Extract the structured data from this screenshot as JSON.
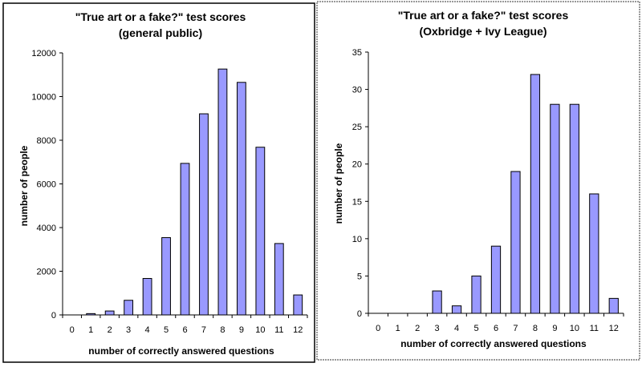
{
  "chart_data": [
    {
      "type": "bar",
      "title": "\"True art or a fake?\" test scores",
      "subtitle": "(general public)",
      "xlabel": "number of correctly answered questions",
      "ylabel": "number of people",
      "categories": [
        "0",
        "1",
        "2",
        "3",
        "4",
        "5",
        "6",
        "7",
        "8",
        "9",
        "10",
        "11",
        "12"
      ],
      "values": [
        0,
        60,
        180,
        670,
        1670,
        3540,
        6940,
        9210,
        11260,
        10650,
        7680,
        3270,
        915
      ],
      "ylim": [
        0,
        12000
      ],
      "yticks": [
        0,
        2000,
        4000,
        6000,
        8000,
        10000,
        12000
      ],
      "grid": false,
      "bar_color": "#9999ff"
    },
    {
      "type": "bar",
      "title": "\"True art or a fake?\" test scores",
      "subtitle": "(Oxbridge + Ivy League)",
      "xlabel": "number of correctly answered questions",
      "ylabel": "number of people",
      "categories": [
        "0",
        "1",
        "2",
        "3",
        "4",
        "5",
        "6",
        "7",
        "8",
        "9",
        "10",
        "11",
        "12"
      ],
      "values": [
        0,
        0,
        0,
        3,
        1,
        5,
        9,
        19,
        32,
        28,
        28,
        16,
        2
      ],
      "ylim": [
        0,
        35
      ],
      "yticks": [
        0,
        5,
        10,
        15,
        20,
        25,
        30,
        35
      ],
      "grid": false,
      "bar_color": "#9999ff"
    }
  ]
}
